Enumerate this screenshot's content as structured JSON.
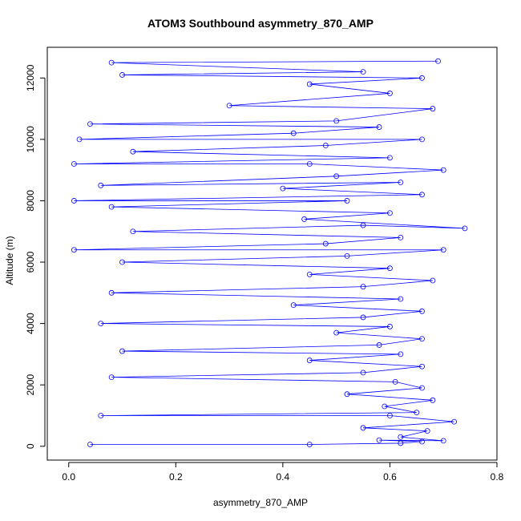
{
  "chart_data": {
    "type": "scatter",
    "title": "ATOM3 Southbound asymmetry_870_AMP",
    "xlabel": "asymmetry_870_AMP",
    "ylabel": "Altitude (m)",
    "xlim": [
      -0.04,
      0.8
    ],
    "ylim": [
      -450,
      13000
    ],
    "x_ticks": [
      0.0,
      0.2,
      0.4,
      0.6,
      0.8
    ],
    "x_tick_labels": [
      "0.0",
      "0.2",
      "0.4",
      "0.6",
      "0.8"
    ],
    "y_ticks": [
      0,
      2000,
      4000,
      6000,
      8000,
      10000,
      12000
    ],
    "y_tick_labels": [
      "0",
      "2000",
      "4000",
      "6000",
      "8000",
      "10000",
      "12000"
    ],
    "grid": false,
    "marker": "open-circle",
    "connected": true,
    "series": [
      {
        "color": "#0000ff",
        "points": [
          [
            0.04,
            60
          ],
          [
            0.45,
            60
          ],
          [
            0.62,
            100
          ],
          [
            0.66,
            150
          ],
          [
            0.58,
            200
          ],
          [
            0.7,
            180
          ],
          [
            0.62,
            300
          ],
          [
            0.67,
            500
          ],
          [
            0.55,
            600
          ],
          [
            0.72,
            800
          ],
          [
            0.6,
            1000
          ],
          [
            0.06,
            1000
          ],
          [
            0.65,
            1100
          ],
          [
            0.59,
            1300
          ],
          [
            0.68,
            1500
          ],
          [
            0.52,
            1700
          ],
          [
            0.66,
            1900
          ],
          [
            0.61,
            2100
          ],
          [
            0.08,
            2250
          ],
          [
            0.55,
            2400
          ],
          [
            0.66,
            2600
          ],
          [
            0.45,
            2800
          ],
          [
            0.62,
            3000
          ],
          [
            0.1,
            3100
          ],
          [
            0.58,
            3300
          ],
          [
            0.66,
            3500
          ],
          [
            0.5,
            3700
          ],
          [
            0.6,
            3900
          ],
          [
            0.06,
            4000
          ],
          [
            0.55,
            4200
          ],
          [
            0.66,
            4400
          ],
          [
            0.42,
            4600
          ],
          [
            0.62,
            4800
          ],
          [
            0.08,
            5000
          ],
          [
            0.55,
            5200
          ],
          [
            0.68,
            5400
          ],
          [
            0.45,
            5600
          ],
          [
            0.6,
            5800
          ],
          [
            0.1,
            6000
          ],
          [
            0.52,
            6200
          ],
          [
            0.7,
            6400
          ],
          [
            0.01,
            6400
          ],
          [
            0.48,
            6600
          ],
          [
            0.62,
            6800
          ],
          [
            0.12,
            7000
          ],
          [
            0.55,
            7200
          ],
          [
            0.74,
            7100
          ],
          [
            0.44,
            7400
          ],
          [
            0.6,
            7600
          ],
          [
            0.08,
            7800
          ],
          [
            0.52,
            8000
          ],
          [
            0.01,
            8000
          ],
          [
            0.66,
            8200
          ],
          [
            0.4,
            8400
          ],
          [
            0.62,
            8600
          ],
          [
            0.06,
            8500
          ],
          [
            0.5,
            8800
          ],
          [
            0.7,
            9000
          ],
          [
            0.45,
            9200
          ],
          [
            0.01,
            9200
          ],
          [
            0.6,
            9400
          ],
          [
            0.12,
            9600
          ],
          [
            0.48,
            9800
          ],
          [
            0.66,
            10000
          ],
          [
            0.02,
            10000
          ],
          [
            0.42,
            10200
          ],
          [
            0.58,
            10400
          ],
          [
            0.04,
            10500
          ],
          [
            0.5,
            10600
          ],
          [
            0.68,
            11000
          ],
          [
            0.3,
            11100
          ],
          [
            0.6,
            11500
          ],
          [
            0.45,
            11800
          ],
          [
            0.66,
            12000
          ],
          [
            0.1,
            12100
          ],
          [
            0.55,
            12200
          ],
          [
            0.08,
            12500
          ],
          [
            0.69,
            12550
          ]
        ]
      }
    ]
  }
}
